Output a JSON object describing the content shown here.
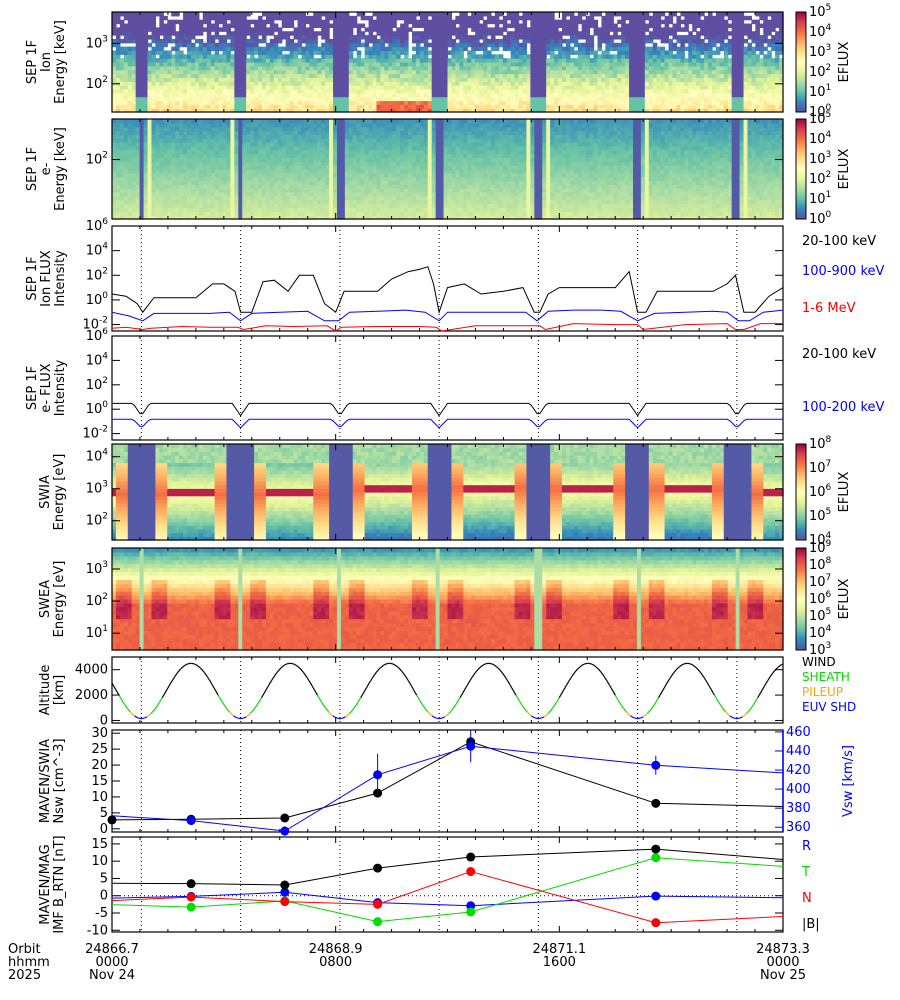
{
  "figure": {
    "x_axis": {
      "row_labels": [
        "Orbit",
        "hhmm",
        "2025"
      ],
      "ticks": [
        {
          "orbit": "24866.7",
          "hhmm": "0000",
          "date": "Nov 24",
          "hour": 0
        },
        {
          "orbit": "24868.9",
          "hhmm": "0800",
          "date": "",
          "hour": 8
        },
        {
          "orbit": "24871.1",
          "hhmm": "1600",
          "date": "",
          "hour": 16
        },
        {
          "orbit": "24873.3",
          "hhmm": "0000",
          "date": "Nov 25",
          "hour": 24
        }
      ],
      "range_hours": [
        0,
        24
      ],
      "periapsis_hours": [
        1.05,
        4.6,
        8.15,
        11.7,
        15.25,
        18.8,
        22.35
      ]
    }
  },
  "chart_data": [
    {
      "type": "heatmap",
      "name": "sep-ion-energy",
      "ylabel_lines": [
        "SEP 1F",
        "Ion",
        "Energy [keV]"
      ],
      "yscale": "log",
      "ylim": [
        20,
        6000
      ],
      "yticks": [
        {
          "v": 100,
          "label": "10^2"
        },
        {
          "v": 1000,
          "label": "10^3"
        }
      ],
      "colorbar": {
        "label": "EFLUX",
        "range": [
          1,
          100000
        ],
        "ticks": [
          "10^0",
          "10^1",
          "10^2",
          "10^3",
          "10^4",
          "10^5"
        ],
        "colormap": "spectral"
      },
      "description": "Mostly low flux (purple) above ~200 keV with white data gaps near top; moderate flux at low energies, enhanced near 30 keV between periapsis passes"
    },
    {
      "type": "heatmap",
      "name": "sep-electron-energy",
      "ylabel_lines": [
        "SEP 1F",
        "e-",
        "Energy [keV]"
      ],
      "yscale": "log",
      "ylim": [
        20,
        300
      ],
      "yticks": [
        {
          "v": 100,
          "label": "10^2"
        }
      ],
      "colorbar": {
        "label": "EFLUX",
        "range": [
          1,
          100000
        ],
        "ticks": [
          "10^0",
          "10^1",
          "10^2",
          "10^3",
          "10^4",
          "10^5"
        ],
        "colormap": "spectral"
      },
      "description": "Uniform moderate flux, increasing toward low energies, with dark streaks at periapsis"
    },
    {
      "type": "line",
      "name": "sep-ion-flux",
      "ylabel_lines": [
        "SEP 1F",
        "Ion FLUX",
        "Intensity"
      ],
      "yscale": "log",
      "ylim": [
        0.003,
        1000000
      ],
      "yticks": [
        "10^-2",
        "10^0",
        "10^2",
        "10^4",
        "10^6"
      ],
      "series": [
        {
          "name": "20-100 keV",
          "color": "#000000",
          "x": [
            0,
            0.5,
            0.9,
            1.1,
            1.5,
            2.0,
            3.0,
            3.6,
            4.0,
            4.4,
            4.6,
            5.0,
            5.4,
            5.8,
            6.3,
            6.7,
            7.2,
            7.6,
            8.0,
            8.3,
            8.7,
            9.5,
            10.0,
            10.6,
            11.0,
            11.3,
            11.5,
            11.7,
            12.0,
            12.6,
            13.2,
            14.0,
            14.7,
            15.1,
            15.3,
            15.6,
            16.0,
            17.0,
            18.0,
            18.5,
            18.8,
            19.1,
            19.5,
            20.5,
            21.5,
            22.0,
            22.3,
            22.6,
            23.0,
            23.5,
            24.0
          ],
          "y": [
            3,
            2,
            0.5,
            0.1,
            1.5,
            1.5,
            1.5,
            20,
            20,
            5,
            0.1,
            0.1,
            30,
            40,
            5,
            100,
            100,
            0.5,
            0.1,
            5,
            5,
            5,
            50,
            200,
            300,
            500,
            20,
            0.1,
            10,
            20,
            3,
            5,
            10,
            0.1,
            0.1,
            3,
            10,
            10,
            10,
            200,
            0.1,
            0.1,
            5,
            5,
            5,
            20,
            100,
            0.1,
            0.1,
            2,
            10
          ]
        },
        {
          "name": "100-900 keV",
          "color": "#0000ff",
          "x": [
            0,
            0.6,
            1.1,
            1.5,
            2.5,
            3.5,
            4.2,
            4.6,
            5.0,
            6.0,
            7.0,
            7.6,
            8.1,
            8.5,
            9.5,
            10.5,
            11.2,
            11.7,
            12.0,
            13.0,
            14.0,
            14.8,
            15.2,
            15.6,
            16.5,
            17.5,
            18.2,
            18.8,
            19.4,
            20.5,
            21.5,
            22.0,
            22.4,
            22.8,
            23.3,
            24.0
          ],
          "y": [
            0.1,
            0.05,
            0.02,
            0.08,
            0.08,
            0.08,
            0.1,
            0.02,
            0.08,
            0.1,
            0.12,
            0.02,
            0.02,
            0.1,
            0.12,
            0.15,
            0.1,
            0.02,
            0.1,
            0.1,
            0.1,
            0.1,
            0.02,
            0.12,
            0.15,
            0.15,
            0.12,
            0.02,
            0.08,
            0.1,
            0.12,
            0.1,
            0.02,
            0.02,
            0.1,
            0.15
          ]
        },
        {
          "name": "1-6 MeV",
          "color": "#ff0000",
          "x": [
            0,
            0.5,
            1.1,
            1.4,
            2.5,
            3.5,
            4.5,
            4.7,
            5.5,
            6.5,
            7.7,
            8.0,
            8.2,
            9.5,
            11.0,
            11.6,
            11.8,
            13.0,
            14.5,
            15.3,
            15.5,
            16.5,
            18.0,
            18.8,
            19.0,
            20.5,
            22.0,
            22.3,
            22.6,
            23.2,
            24.0
          ],
          "y": [
            0.005,
            0.006,
            0.004,
            0.005,
            0.007,
            0.006,
            0.006,
            0.004,
            0.008,
            0.007,
            0.008,
            0.003,
            0.006,
            0.007,
            0.007,
            0.006,
            0.003,
            0.008,
            0.008,
            0.008,
            0.004,
            0.012,
            0.01,
            0.01,
            0.004,
            0.01,
            0.012,
            0.004,
            0.004,
            0.012,
            0.012
          ]
        }
      ]
    },
    {
      "type": "line",
      "name": "sep-electron-flux",
      "ylabel_lines": [
        "SEP 1F",
        "e- FLUX",
        "Intensity"
      ],
      "yscale": "log",
      "ylim": [
        0.003,
        1000000
      ],
      "yticks": [
        "10^-2",
        "10^0",
        "10^2",
        "10^4",
        "10^6"
      ],
      "series": [
        {
          "name": "20-100 keV",
          "color": "#000000",
          "base": 3,
          "dip": 0.3
        },
        {
          "name": "100-200 keV",
          "color": "#0000ff",
          "base": 0.15,
          "dip": 0.03
        }
      ]
    },
    {
      "type": "heatmap",
      "name": "swia-energy",
      "ylabel_lines": [
        "SWIA",
        "Energy [eV]"
      ],
      "yscale": "log",
      "ylim": [
        25,
        25000
      ],
      "yticks": [
        {
          "v": 100,
          "label": "10^2"
        },
        {
          "v": 1000,
          "label": "10^3"
        },
        {
          "v": 10000,
          "label": "10^4"
        }
      ],
      "colorbar": {
        "label": "EFLUX",
        "range": [
          10000,
          100000000
        ],
        "ticks": [
          "10^4",
          "10^5",
          "10^6",
          "10^7",
          "10^8"
        ],
        "colormap": "spectral"
      },
      "solar_wind_beam_eV": [
        700,
        700,
        1000,
        1100,
        1000,
        1000
      ],
      "description": "Solar wind proton beam (~700-1100 eV) between periapsis gaps; low-count purple regions near periapsis"
    },
    {
      "type": "heatmap",
      "name": "swea-energy",
      "ylabel_lines": [
        "SWEA",
        "Energy [eV]"
      ],
      "yscale": "log",
      "ylim": [
        3,
        4500
      ],
      "yticks": [
        {
          "v": 10,
          "label": "10^1"
        },
        {
          "v": 100,
          "label": "10^2"
        },
        {
          "v": 1000,
          "label": "10^3"
        }
      ],
      "colorbar": {
        "label": "EFLUX",
        "range": [
          1000,
          1000000000
        ],
        "ticks": [
          "10^3",
          "10^4",
          "10^5",
          "10^6",
          "10^7",
          "10^8",
          "10^9"
        ],
        "colormap": "spectral"
      },
      "description": "High flux (orange-red) below ~100 eV throughout; decreasing flux above; sheath enhancements bracket each periapsis"
    },
    {
      "type": "line",
      "name": "altitude",
      "ylabel_lines": [
        "Altitude",
        "[km]"
      ],
      "ylim": [
        -200,
        5000
      ],
      "yticks": [
        "0",
        "2000",
        "4000"
      ],
      "apoapsis_km": 4500,
      "periapsis_km": 150,
      "legend": [
        {
          "label": "WIND",
          "color": "#000000"
        },
        {
          "label": "SHEATH",
          "color": "#00dd00"
        },
        {
          "label": "PILEUP",
          "color": "#ffa500"
        },
        {
          "label": "EUV SHD",
          "color": "#0000ff"
        }
      ]
    },
    {
      "type": "scatter",
      "name": "swia-nsw-vsw",
      "ylabel_lines": [
        "MAVEN/SWIA",
        "Nsw [cm^-3]"
      ],
      "ylim": [
        -1,
        31
      ],
      "yticks": [
        "0",
        "5",
        "10",
        "15",
        "20",
        "25",
        "30"
      ],
      "y2label": "Vsw [km/s]",
      "y2lim": [
        355,
        462
      ],
      "y2ticks": [
        "360",
        "380",
        "400",
        "420",
        "440",
        "460"
      ],
      "series": [
        {
          "name": "Nsw",
          "color": "#000000",
          "axis": "left",
          "x": [
            0,
            2.83,
            6.18,
            9.5,
            12.83,
            19.45,
            24
          ],
          "y": [
            2.8,
            3.0,
            3.4,
            11.2,
            27.3,
            8.0,
            7.0
          ],
          "points": [
            true,
            true,
            true,
            true,
            true,
            true,
            false
          ]
        },
        {
          "name": "Vsw",
          "color": "#0000ff",
          "axis": "right",
          "x": [
            0,
            2.83,
            6.18,
            9.5,
            12.83,
            19.45,
            24
          ],
          "y": [
            372,
            367,
            356,
            415,
            445,
            425,
            417
          ],
          "err": [
            0,
            3,
            5,
            22,
            17,
            10,
            0
          ],
          "points": [
            false,
            true,
            true,
            true,
            true,
            true,
            false
          ]
        }
      ]
    },
    {
      "type": "line",
      "name": "mag-imf",
      "ylabel_lines": [
        "MAVEN/MAG",
        "IMF B_RTN [nT]"
      ],
      "ylim": [
        -10.5,
        17
      ],
      "yticks": [
        "-10",
        "-5",
        "0",
        "5",
        "10",
        "15"
      ],
      "legend": [
        {
          "label": "R",
          "color": "#0000ff"
        },
        {
          "label": "T",
          "color": "#00dd00"
        },
        {
          "label": "N",
          "color": "#ff0000"
        },
        {
          "label": "|B|",
          "color": "#000000"
        }
      ],
      "series": [
        {
          "name": "R",
          "color": "#0000ff",
          "x": [
            0,
            2.83,
            6.18,
            9.5,
            12.83,
            19.45,
            24
          ],
          "y": [
            -0.7,
            -0.2,
            1.0,
            -2.0,
            -2.9,
            -0.1,
            -0.6
          ],
          "points": [
            false,
            true,
            true,
            true,
            true,
            true,
            false
          ]
        },
        {
          "name": "T",
          "color": "#00dd00",
          "x": [
            0,
            2.83,
            6.18,
            9.5,
            12.83,
            19.45,
            24
          ],
          "y": [
            -2.6,
            -3.3,
            -1.5,
            -7.5,
            -4.7,
            11.0,
            8.5
          ],
          "points": [
            false,
            true,
            true,
            true,
            true,
            true,
            false
          ]
        },
        {
          "name": "N",
          "color": "#ff0000",
          "x": [
            0,
            2.83,
            6.18,
            9.5,
            12.83,
            19.45,
            24
          ],
          "y": [
            -1.4,
            -0.4,
            -1.7,
            -2.5,
            7.0,
            -7.8,
            -6.0
          ],
          "points": [
            false,
            true,
            true,
            true,
            true,
            true,
            false
          ]
        },
        {
          "name": "|B|",
          "color": "#000000",
          "x": [
            0,
            2.83,
            6.18,
            9.5,
            12.83,
            19.45,
            24
          ],
          "y": [
            3.6,
            3.5,
            3.1,
            8.0,
            11.2,
            13.5,
            10.5
          ],
          "points": [
            false,
            true,
            true,
            true,
            true,
            true,
            false
          ]
        }
      ]
    }
  ]
}
